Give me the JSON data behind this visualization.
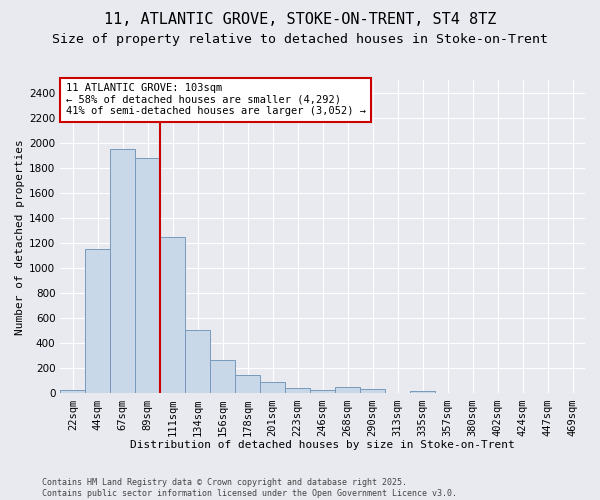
{
  "title_line1": "11, ATLANTIC GROVE, STOKE-ON-TRENT, ST4 8TZ",
  "title_line2": "Size of property relative to detached houses in Stoke-on-Trent",
  "xlabel": "Distribution of detached houses by size in Stoke-on-Trent",
  "ylabel": "Number of detached properties",
  "categories": [
    "22sqm",
    "44sqm",
    "67sqm",
    "89sqm",
    "111sqm",
    "134sqm",
    "156sqm",
    "178sqm",
    "201sqm",
    "223sqm",
    "246sqm",
    "268sqm",
    "290sqm",
    "313sqm",
    "335sqm",
    "357sqm",
    "380sqm",
    "402sqm",
    "424sqm",
    "447sqm",
    "469sqm"
  ],
  "values": [
    30,
    1150,
    1950,
    1880,
    1250,
    510,
    270,
    145,
    95,
    40,
    30,
    50,
    35,
    0,
    20,
    0,
    0,
    0,
    0,
    0,
    0
  ],
  "bar_color": "#c8d8e8",
  "bar_edge_color": "#7799bb",
  "vline_color": "#cc0000",
  "vline_pos": 3.5,
  "annotation_text": "11 ATLANTIC GROVE: 103sqm\n← 58% of detached houses are smaller (4,292)\n41% of semi-detached houses are larger (3,052) →",
  "annotation_box_color": "#ffffff",
  "annotation_box_edge": "#cc0000",
  "ylim": [
    0,
    2500
  ],
  "yticks": [
    0,
    200,
    400,
    600,
    800,
    1000,
    1200,
    1400,
    1600,
    1800,
    2000,
    2200,
    2400
  ],
  "bg_color": "#e8eaf0",
  "footer_text": "Contains HM Land Registry data © Crown copyright and database right 2025.\nContains public sector information licensed under the Open Government Licence v3.0.",
  "title_fontsize": 11,
  "subtitle_fontsize": 9.5,
  "axis_label_fontsize": 8,
  "tick_fontsize": 7.5,
  "annotation_fontsize": 7.5,
  "footer_fontsize": 6
}
